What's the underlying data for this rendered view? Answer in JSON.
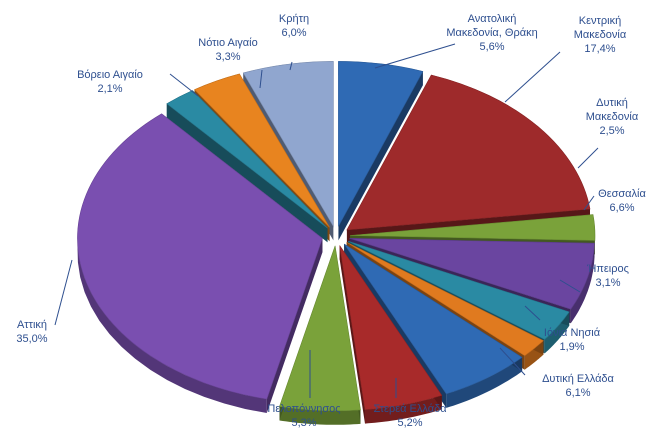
{
  "chart_data": {
    "type": "pie",
    "title": "",
    "exploded": true,
    "three_d": true,
    "unit": "%",
    "slices": [
      {
        "name": "Ανατολική Μακεδονία, Θράκη",
        "lines": [
          "Ανατολική",
          "Μακεδονία, Θράκη"
        ],
        "value": 5.6,
        "label": "5,6%",
        "color": "#2f6ab4"
      },
      {
        "name": "Κεντρική Μακεδονία",
        "lines": [
          "Κεντρική",
          "Μακεδονία"
        ],
        "value": 17.4,
        "label": "17,4%",
        "color": "#9e2a2b"
      },
      {
        "name": "Δυτική Μακεδονία",
        "lines": [
          "Δυτική",
          "Μακεδονία"
        ],
        "value": 2.5,
        "label": "2,5%",
        "color": "#7aa23a"
      },
      {
        "name": "Θεσσαλία",
        "lines": [
          "Θεσσαλία"
        ],
        "value": 6.6,
        "label": "6,6%",
        "color": "#6a45a0"
      },
      {
        "name": "Ήπειρος",
        "lines": [
          "Ήπειρος"
        ],
        "value": 3.1,
        "label": "3,1%",
        "color": "#2a8aa3"
      },
      {
        "name": "Ιόνια Νησιά",
        "lines": [
          "Ιόνια Νησιά"
        ],
        "value": 1.9,
        "label": "1,9%",
        "color": "#e07a1f"
      },
      {
        "name": "Δυτική Ελλάδα",
        "lines": [
          "Δυτική Ελλάδα"
        ],
        "value": 6.1,
        "label": "6,1%",
        "color": "#2f6ab4"
      },
      {
        "name": "Στερεά Ελλάδα",
        "lines": [
          "Στερεά Ελλάδα"
        ],
        "value": 5.2,
        "label": "5,2%",
        "color": "#a82a2a"
      },
      {
        "name": "Πελοπόννησος",
        "lines": [
          "Πελοπόννησος"
        ],
        "value": 5.3,
        "label": "5,3%",
        "color": "#7aa23a"
      },
      {
        "name": "Αττική",
        "lines": [
          "Αττική"
        ],
        "value": 35.0,
        "label": "35,0%",
        "color": "#7a4fb0"
      },
      {
        "name": "Βόρειο Αιγαίο",
        "lines": [
          "Βόρειο Αιγαίο"
        ],
        "value": 2.1,
        "label": "2,1%",
        "color": "#2a8aa3"
      },
      {
        "name": "Νότιο Αιγαίο",
        "lines": [
          "Νότιο Αιγαίο"
        ],
        "value": 3.3,
        "label": "3,3%",
        "color": "#e8841f"
      },
      {
        "name": "Κρήτη",
        "lines": [
          "Κρήτη"
        ],
        "value": 6.0,
        "label": "6,0%",
        "color": "#90a6cf"
      }
    ],
    "label_text_color": "#2e4f8f"
  }
}
